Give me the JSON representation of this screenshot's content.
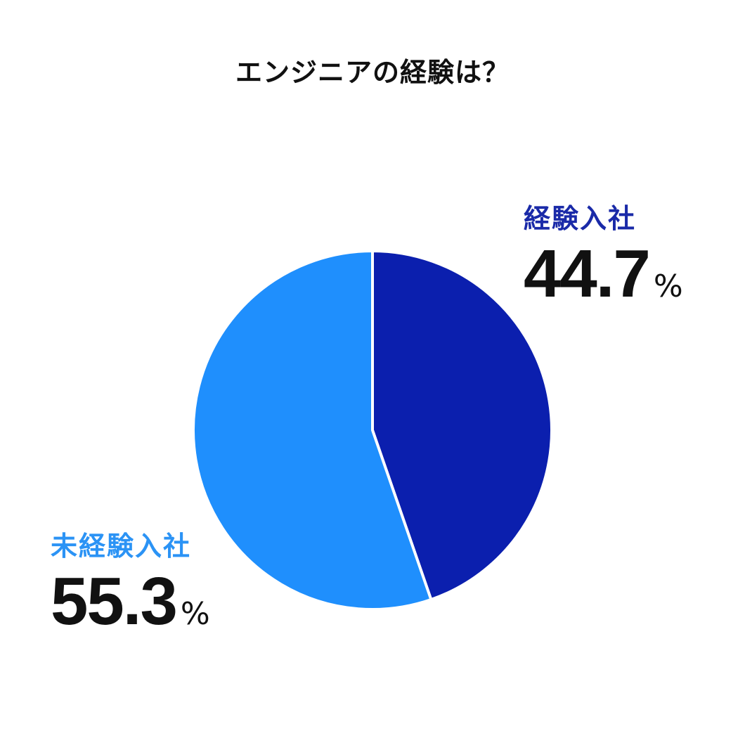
{
  "chart_data": {
    "type": "pie",
    "title": "エンジニアの経験は？",
    "slices": [
      {
        "label": "経験入社",
        "value": 44.7,
        "value_text": "44.7",
        "unit": "%",
        "color": "#0b1fae",
        "label_color": "#1a2aa8"
      },
      {
        "label": "未経験入社",
        "value": 55.3,
        "value_text": "55.3",
        "unit": "%",
        "color": "#1f8ffd",
        "label_color": "#2b93f5"
      }
    ],
    "start_angle": "top",
    "direction": "clockwise",
    "legend": "none",
    "separator_color": "#ffffff"
  }
}
